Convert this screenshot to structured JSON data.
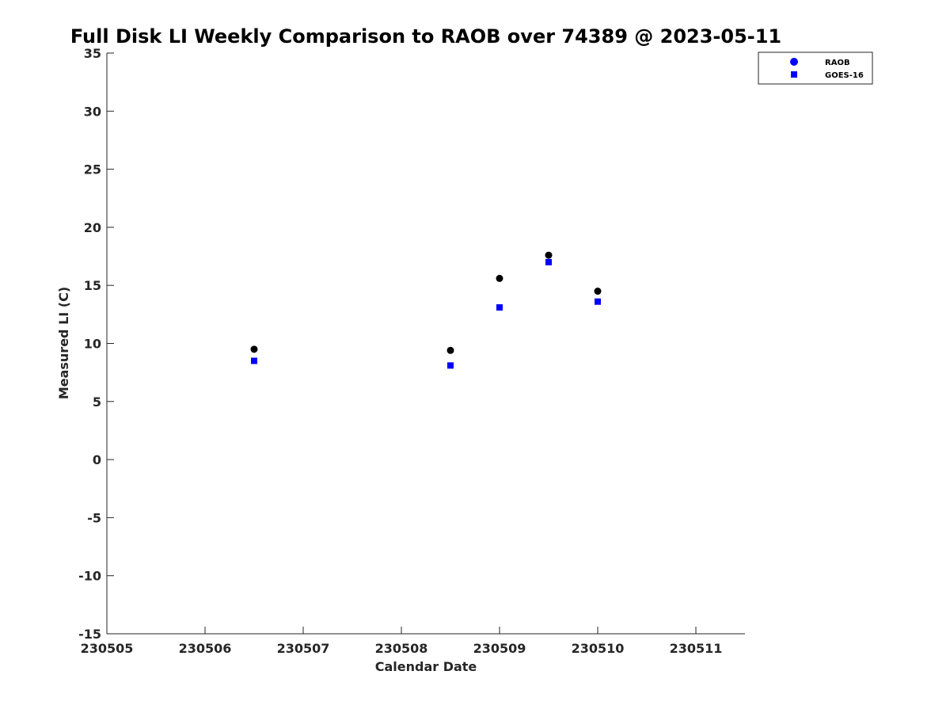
{
  "chart_data": {
    "type": "scatter",
    "title": "Full Disk LI Weekly Comparison to RAOB over 74389 @ 2023-05-11",
    "xlabel": "Calendar Date",
    "ylabel": "Measured LI (C)",
    "xlim": [
      230505,
      230511.5
    ],
    "ylim": [
      -15,
      35
    ],
    "xticks": [
      230505,
      230506,
      230507,
      230508,
      230509,
      230510,
      230511
    ],
    "xtick_labels": [
      "230505",
      "230506",
      "230507",
      "230508",
      "230509",
      "230510",
      "230511"
    ],
    "yticks": [
      -15,
      -10,
      -5,
      0,
      5,
      10,
      15,
      20,
      25,
      30,
      35
    ],
    "ytick_labels": [
      "-15",
      "-10",
      "-5",
      "0",
      "5",
      "10",
      "15",
      "20",
      "25",
      "30",
      "35"
    ],
    "grid": false,
    "legend_position": "top-right",
    "series": [
      {
        "name": "RAOB",
        "marker": "circle",
        "legend_color": "#0000ff",
        "color": "#000000",
        "x": [
          230506.5,
          230508.5,
          230509.0,
          230509.5,
          230510.0
        ],
        "y": [
          9.5,
          9.4,
          15.6,
          17.6,
          14.5
        ]
      },
      {
        "name": "GOES-16",
        "marker": "square",
        "legend_color": "#0000ff",
        "color": "#0000ff",
        "x": [
          230506.5,
          230508.5,
          230509.0,
          230509.5,
          230510.0
        ],
        "y": [
          8.5,
          8.1,
          13.1,
          17.0,
          13.6
        ]
      }
    ]
  }
}
